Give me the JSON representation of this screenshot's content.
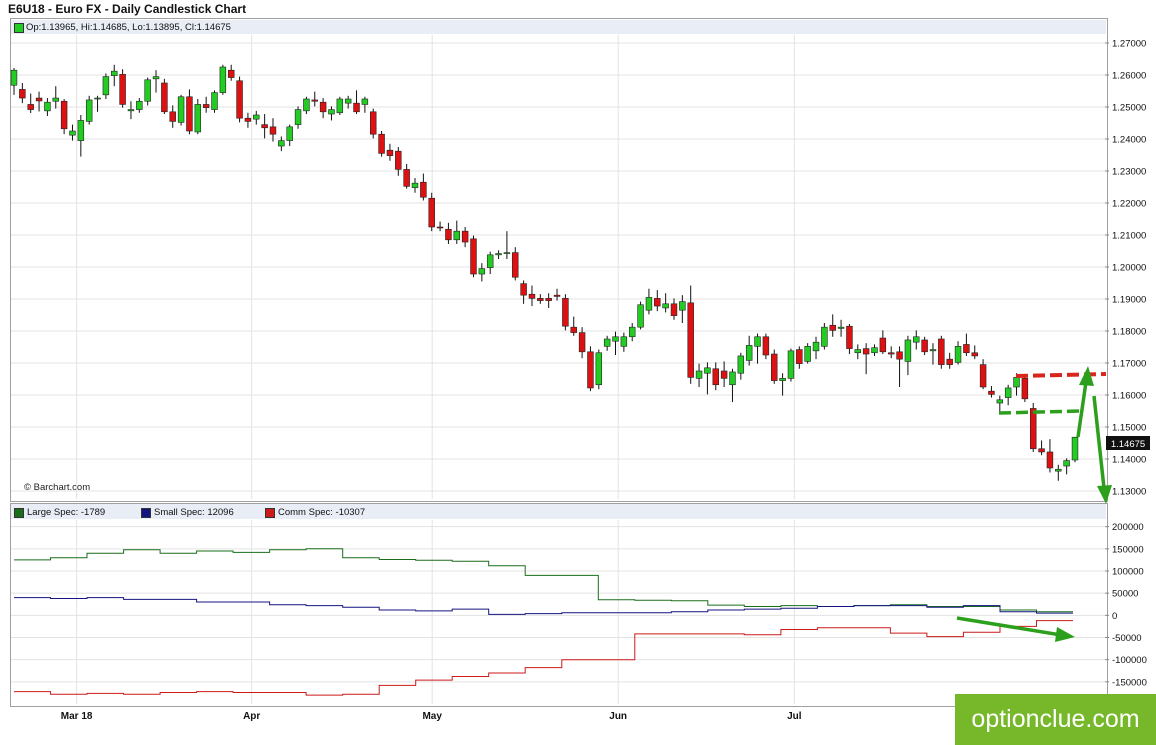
{
  "header": {
    "title": "E6U18 - Euro FX - Daily Candlestick Chart",
    "ohlc": "Op:1.13965, Hi:1.14685, Lo:1.13895, Cl:1.14675",
    "credit": "© Barchart.com",
    "last_price": "1.14675"
  },
  "brand": {
    "text": "optionclue.com",
    "color": "#76b82a"
  },
  "colors": {
    "up": "#22cc22",
    "down": "#dd1111",
    "large": "#1a6e1a",
    "small": "#141480",
    "comm": "#cc1a1a",
    "annotation_green": "#2ca01c",
    "annotation_red": "#d9261c"
  },
  "chart_data": [
    {
      "type": "candlestick",
      "title": "E6U18 - Euro FX - Daily Candlestick Chart",
      "y_ticks": [
        "1.27000",
        "1.26000",
        "1.25000",
        "1.24000",
        "1.23000",
        "1.22000",
        "1.21000",
        "1.20000",
        "1.19000",
        "1.18000",
        "1.17000",
        "1.16000",
        "1.15000",
        "1.14000",
        "1.13000"
      ],
      "ylim": [
        1.1275,
        1.2725
      ],
      "x_ticks": [
        "Mar 18",
        "Apr",
        "May",
        "Jun",
        "Jul"
      ],
      "grid": true,
      "candles": [
        [
          1.2568,
          1.2622,
          1.2538,
          1.2615
        ],
        [
          1.2555,
          1.2575,
          1.2512,
          1.2528
        ],
        [
          1.2508,
          1.2542,
          1.2481,
          1.2492
        ],
        [
          1.2528,
          1.2548,
          1.2486,
          1.2519
        ],
        [
          1.2488,
          1.2528,
          1.2472,
          1.2515
        ],
        [
          1.2518,
          1.2565,
          1.2495,
          1.2528
        ],
        [
          1.2518,
          1.2525,
          1.2415,
          1.2432
        ],
        [
          1.2412,
          1.2445,
          1.2395,
          1.2425
        ],
        [
          1.2395,
          1.2475,
          1.2345,
          1.2458
        ],
        [
          1.2455,
          1.2535,
          1.2445,
          1.2522
        ],
        [
          1.2525,
          1.2535,
          1.2485,
          1.2528
        ],
        [
          1.2538,
          1.2605,
          1.2525,
          1.2595
        ],
        [
          1.2598,
          1.2632,
          1.2565,
          1.2612
        ],
        [
          1.2602,
          1.2618,
          1.2498,
          1.2508
        ],
        [
          1.2488,
          1.2518,
          1.2462,
          1.2492
        ],
        [
          1.2492,
          1.2528,
          1.2482,
          1.2518
        ],
        [
          1.2518,
          1.2592,
          1.2505,
          1.2585
        ],
        [
          1.2588,
          1.2615,
          1.2545,
          1.2595
        ],
        [
          1.2575,
          1.2588,
          1.2478,
          1.2485
        ],
        [
          1.2485,
          1.2505,
          1.2435,
          1.2455
        ],
        [
          1.2452,
          1.2538,
          1.2442,
          1.2532
        ],
        [
          1.2532,
          1.2555,
          1.2415,
          1.2425
        ],
        [
          1.2422,
          1.2525,
          1.2415,
          1.2508
        ],
        [
          1.2508,
          1.2532,
          1.2482,
          1.2498
        ],
        [
          1.2492,
          1.2552,
          1.2482,
          1.2545
        ],
        [
          1.2545,
          1.2632,
          1.2538,
          1.2625
        ],
        [
          1.2615,
          1.2632,
          1.2582,
          1.2592
        ],
        [
          1.2582,
          1.2595,
          1.2452,
          1.2465
        ],
        [
          1.2465,
          1.2482,
          1.2435,
          1.2455
        ],
        [
          1.2462,
          1.2488,
          1.2445,
          1.2475
        ],
        [
          1.2445,
          1.2478,
          1.2402,
          1.2435
        ],
        [
          1.2438,
          1.2465,
          1.2392,
          1.2415
        ],
        [
          1.2378,
          1.2408,
          1.2362,
          1.2395
        ],
        [
          1.2395,
          1.2445,
          1.2378,
          1.2438
        ],
        [
          1.2445,
          1.2502,
          1.2432,
          1.2492
        ],
        [
          1.2488,
          1.2532,
          1.2478,
          1.2525
        ],
        [
          1.2522,
          1.2548,
          1.2502,
          1.2518
        ],
        [
          1.2515,
          1.2528,
          1.2465,
          1.2485
        ],
        [
          1.2478,
          1.2502,
          1.2458,
          1.2492
        ],
        [
          1.2482,
          1.2532,
          1.2475,
          1.2525
        ],
        [
          1.2512,
          1.2535,
          1.2495,
          1.2525
        ],
        [
          1.2512,
          1.2552,
          1.2478,
          1.2485
        ],
        [
          1.2508,
          1.2532,
          1.2482,
          1.2525
        ],
        [
          1.2485,
          1.2495,
          1.2402,
          1.2415
        ],
        [
          1.2415,
          1.2425,
          1.2345,
          1.2355
        ],
        [
          1.2365,
          1.2385,
          1.2332,
          1.2348
        ],
        [
          1.2362,
          1.2375,
          1.2285,
          1.2305
        ],
        [
          1.2305,
          1.2322,
          1.2245,
          1.2252
        ],
        [
          1.2248,
          1.2278,
          1.2232,
          1.2262
        ],
        [
          1.2265,
          1.2292,
          1.2208,
          1.2218
        ],
        [
          1.2215,
          1.2232,
          1.2112,
          1.2125
        ],
        [
          1.2125,
          1.2142,
          1.2112,
          1.2122
        ],
        [
          1.2118,
          1.2138,
          1.2072,
          1.2085
        ],
        [
          1.2085,
          1.2145,
          1.2072,
          1.2112
        ],
        [
          1.2112,
          1.2125,
          1.2062,
          1.2078
        ],
        [
          1.2088,
          1.2098,
          1.1968,
          1.1978
        ],
        [
          1.1978,
          1.2012,
          1.1955,
          1.1995
        ],
        [
          1.1998,
          1.2048,
          1.1978,
          1.2038
        ],
        [
          1.2038,
          1.2052,
          1.2025,
          1.2042
        ],
        [
          1.2042,
          1.2112,
          1.2025,
          1.2045
        ],
        [
          1.2045,
          1.2062,
          1.1958,
          1.1968
        ],
        [
          1.1948,
          1.1958,
          1.1885,
          1.1912
        ],
        [
          1.1915,
          1.1942,
          1.1878,
          1.1902
        ],
        [
          1.1902,
          1.1915,
          1.1885,
          1.1895
        ],
        [
          1.1902,
          1.1918,
          1.1872,
          1.1895
        ],
        [
          1.1912,
          1.1932,
          1.1895,
          1.1908
        ],
        [
          1.1902,
          1.1915,
          1.1802,
          1.1815
        ],
        [
          1.1812,
          1.1845,
          1.1785,
          1.1795
        ],
        [
          1.1795,
          1.1812,
          1.1715,
          1.1735
        ],
        [
          1.1735,
          1.1752,
          1.1612,
          1.1622
        ],
        [
          1.1632,
          1.1742,
          1.1618,
          1.1732
        ],
        [
          1.1752,
          1.1785,
          1.1738,
          1.1775
        ],
        [
          1.1768,
          1.1798,
          1.1725,
          1.1782
        ],
        [
          1.1752,
          1.1795,
          1.1735,
          1.1782
        ],
        [
          1.1782,
          1.1825,
          1.1768,
          1.1812
        ],
        [
          1.1812,
          1.1892,
          1.1805,
          1.1882
        ],
        [
          1.1865,
          1.1932,
          1.1852,
          1.1905
        ],
        [
          1.1902,
          1.1928,
          1.1862,
          1.1878
        ],
        [
          1.1872,
          1.1918,
          1.1858,
          1.1885
        ],
        [
          1.1885,
          1.1902,
          1.1835,
          1.1848
        ],
        [
          1.1865,
          1.1912,
          1.1825,
          1.1892
        ],
        [
          1.1888,
          1.1942,
          1.1635,
          1.1655
        ],
        [
          1.1652,
          1.1698,
          1.1625,
          1.1675
        ],
        [
          1.1668,
          1.1702,
          1.1602,
          1.1685
        ],
        [
          1.1682,
          1.1702,
          1.1615,
          1.1632
        ],
        [
          1.1675,
          1.1705,
          1.1625,
          1.1652
        ],
        [
          1.1632,
          1.1682,
          1.1578,
          1.1672
        ],
        [
          1.1668,
          1.1732,
          1.1648,
          1.1722
        ],
        [
          1.1708,
          1.1785,
          1.1692,
          1.1755
        ],
        [
          1.1752,
          1.1792,
          1.1698,
          1.1782
        ],
        [
          1.1782,
          1.1792,
          1.1712,
          1.1725
        ],
        [
          1.1728,
          1.1742,
          1.1635,
          1.1645
        ],
        [
          1.1645,
          1.1668,
          1.1598,
          1.1652
        ],
        [
          1.1652,
          1.1745,
          1.1642,
          1.1738
        ],
        [
          1.1742,
          1.1752,
          1.1682,
          1.1698
        ],
        [
          1.1705,
          1.1762,
          1.1698,
          1.1752
        ],
        [
          1.1738,
          1.1782,
          1.1712,
          1.1765
        ],
        [
          1.1752,
          1.1825,
          1.1742,
          1.1812
        ],
        [
          1.1818,
          1.1852,
          1.1782,
          1.1802
        ],
        [
          1.1808,
          1.1835,
          1.1782,
          1.1812
        ],
        [
          1.1815,
          1.1822,
          1.1728,
          1.1745
        ],
        [
          1.1732,
          1.1758,
          1.1712,
          1.1742
        ],
        [
          1.1745,
          1.1762,
          1.1665,
          1.1728
        ],
        [
          1.1732,
          1.1758,
          1.1722,
          1.1748
        ],
        [
          1.1778,
          1.1802,
          1.1728,
          1.1735
        ],
        [
          1.1732,
          1.1752,
          1.1715,
          1.1728
        ],
        [
          1.1735,
          1.1752,
          1.1625,
          1.1712
        ],
        [
          1.1705,
          1.1785,
          1.1662,
          1.1772
        ],
        [
          1.1765,
          1.1802,
          1.1742,
          1.1782
        ],
        [
          1.1772,
          1.1782,
          1.1725,
          1.1735
        ],
        [
          1.1738,
          1.1762,
          1.1695,
          1.1742
        ],
        [
          1.1775,
          1.1785,
          1.1682,
          1.1695
        ],
        [
          1.1712,
          1.1732,
          1.1682,
          1.1695
        ],
        [
          1.1702,
          1.1768,
          1.1695,
          1.1752
        ],
        [
          1.1758,
          1.1792,
          1.1722,
          1.1732
        ],
        [
          1.1732,
          1.1755,
          1.1712,
          1.1722
        ],
        [
          1.1695,
          1.1712,
          1.1618,
          1.1625
        ],
        [
          1.1612,
          1.1628,
          1.1592,
          1.1602
        ],
        [
          1.1575,
          1.1598,
          1.1548,
          1.1585
        ],
        [
          1.1592,
          1.1632,
          1.1568,
          1.1622
        ],
        [
          1.1625,
          1.1668,
          1.1598,
          1.1655
        ],
        [
          1.1652,
          1.1662,
          1.1578,
          1.1588
        ],
        [
          1.1558,
          1.1575,
          1.1422,
          1.1432
        ],
        [
          1.1432,
          1.1458,
          1.1412,
          1.1422
        ],
        [
          1.1422,
          1.1462,
          1.1358,
          1.1372
        ],
        [
          1.1362,
          1.1382,
          1.1332,
          1.1368
        ],
        [
          1.1378,
          1.1402,
          1.1352,
          1.1395
        ],
        [
          1.1397,
          1.1469,
          1.139,
          1.1468
        ]
      ]
    },
    {
      "type": "line",
      "title": "",
      "y_ticks": [
        "200000",
        "150000",
        "100000",
        "50000",
        "0",
        "-50000",
        "-100000",
        "-150000"
      ],
      "ylim": [
        -200000,
        215000
      ],
      "x_ticks": [
        "Mar 18",
        "Apr",
        "May",
        "Jun",
        "Jul"
      ],
      "series": [
        {
          "name": "Large Spec: -1789",
          "steps": [
            125000,
            130000,
            140000,
            148000,
            140000,
            145000,
            142000,
            148000,
            150000,
            130000,
            126000,
            124000,
            122000,
            112000,
            90000,
            90000,
            35000,
            34000,
            33000,
            23000,
            20000,
            22000,
            20000,
            22000,
            24000,
            20000,
            20000,
            12000,
            8000
          ]
        },
        {
          "name": "Small Spec: 12096",
          "steps": [
            40000,
            38000,
            40000,
            36000,
            36000,
            30000,
            30000,
            24000,
            22000,
            18000,
            12000,
            10000,
            14000,
            2000,
            4000,
            6000,
            6000,
            6000,
            8000,
            12000,
            14000,
            16000,
            20000,
            22000,
            22000,
            18000,
            22000,
            8000,
            5000
          ]
        },
        {
          "name": "Comm Spec: -10307",
          "steps": [
            -172000,
            -178000,
            -176000,
            -178000,
            -174000,
            -172000,
            -174000,
            -174000,
            -180000,
            -178000,
            -158000,
            -146000,
            -138000,
            -130000,
            -118000,
            -100000,
            -100000,
            -42000,
            -42000,
            -42000,
            -44000,
            -32000,
            -28000,
            -28000,
            -40000,
            -48000,
            -38000,
            -25000,
            -12000
          ]
        }
      ]
    }
  ]
}
